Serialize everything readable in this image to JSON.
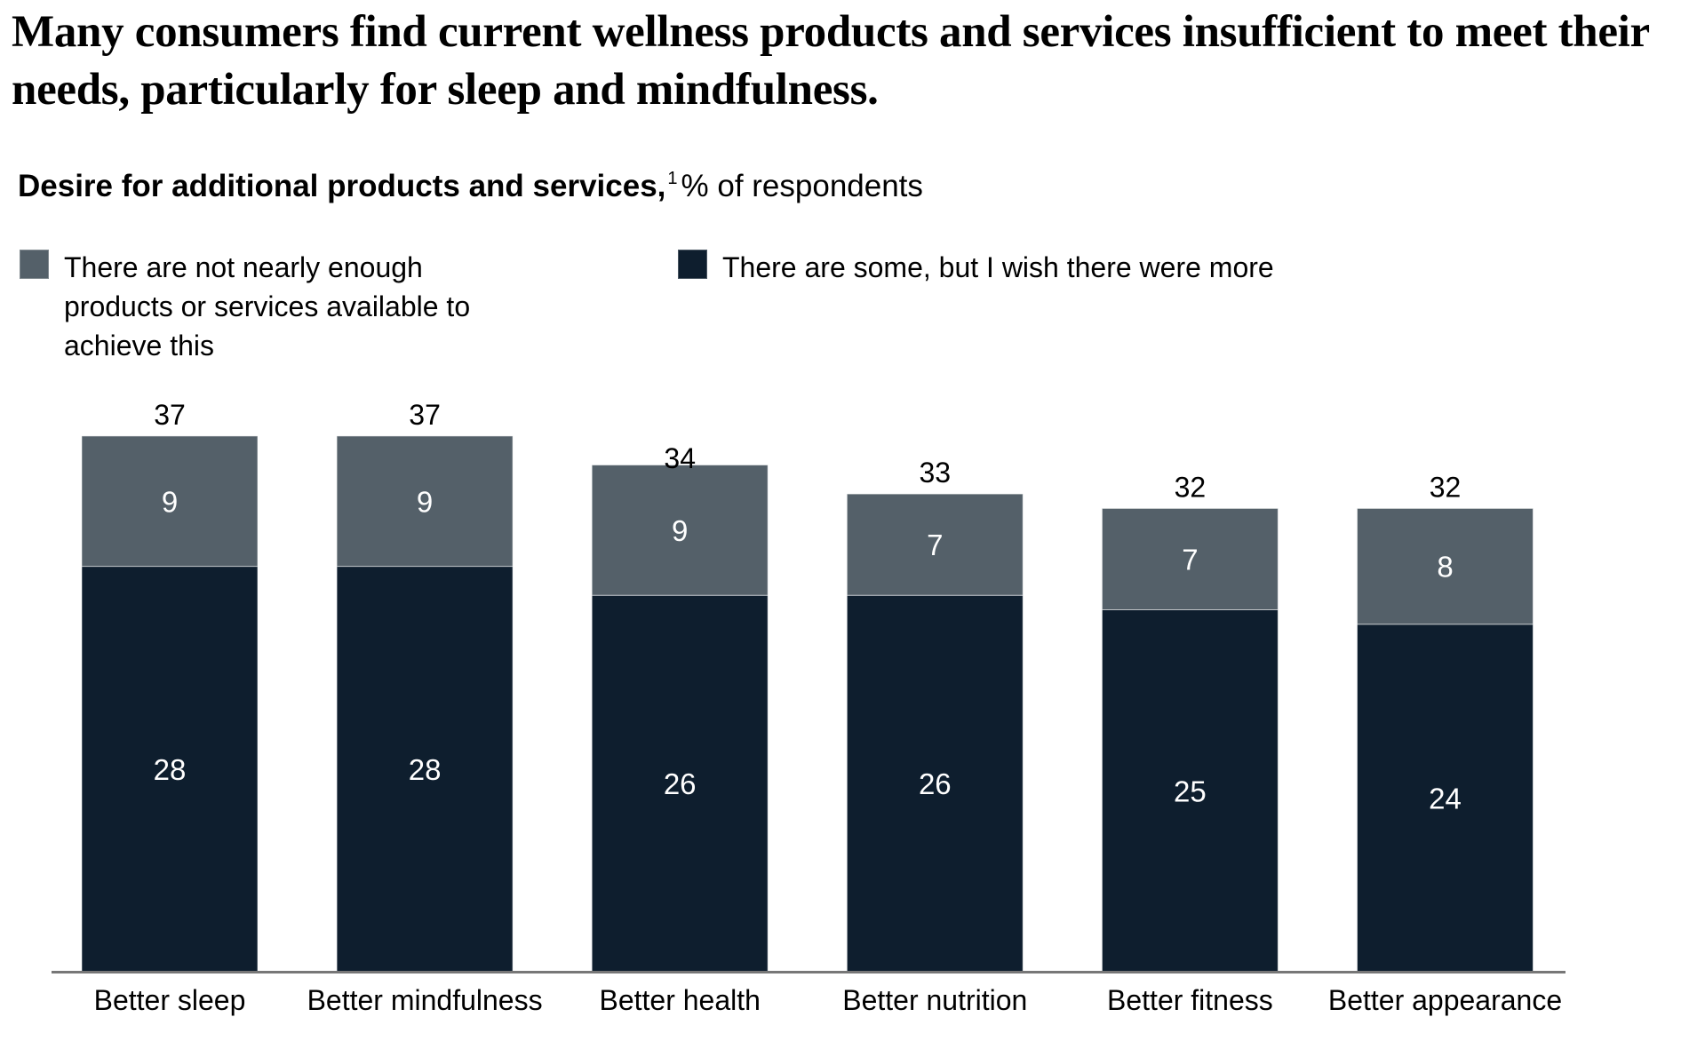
{
  "header": {
    "title": "Many consumers find current wellness products and services insufficient to meet their needs, particularly for sleep and mindfulness.",
    "subtitle_bold": "Desire for additional products and services,",
    "subtitle_footnote": "1",
    "subtitle_rest": "% of respondents"
  },
  "legend": [
    {
      "label": "There are not nearly enough products or services available to achieve this",
      "color": "#546069"
    },
    {
      "label": "There are some, but I wish there were more",
      "color": "#0e1e2e"
    }
  ],
  "chart_data": {
    "type": "bar",
    "stacked": true,
    "title": "Desire for additional products and services, % of respondents",
    "xlabel": "",
    "ylabel": "% of respondents",
    "ylim": [
      0,
      37
    ],
    "grid": false,
    "legend_position": "top-left",
    "categories": [
      "Better sleep",
      "Better mindfulness",
      "Better health",
      "Better nutrition",
      "Better fitness",
      "Better appearance"
    ],
    "series": [
      {
        "name": "There are some, but I wish there were more",
        "color": "#0e1e2e",
        "values": [
          28,
          28,
          26,
          26,
          25,
          24
        ]
      },
      {
        "name": "There are not nearly enough products or services available to achieve this",
        "color": "#546069",
        "values": [
          9,
          9,
          9,
          7,
          7,
          8
        ]
      }
    ],
    "totals": [
      37,
      37,
      34,
      33,
      32,
      32
    ]
  }
}
